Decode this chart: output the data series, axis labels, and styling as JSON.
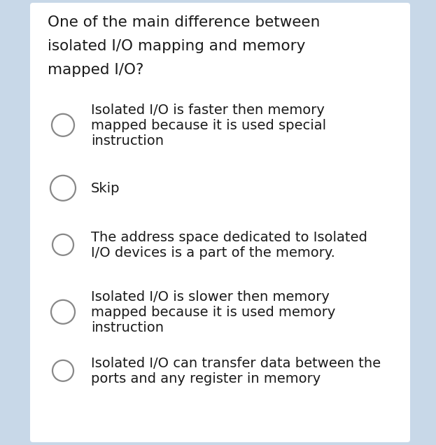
{
  "bg_outer": "#c8d8e8",
  "bg_card": "#ffffff",
  "question": "One of the main difference between isolated I/O mapping and memory mapped I/O?",
  "options": [
    "Isolated I/O is faster then memory\nmapped because it is used special\ninstruction",
    "Skip",
    "The address space dedicated to Isolated\nI/O devices is a part of the memory.",
    "Isolated I/O is slower then memory\nmapped because it is used memory\ninstruction",
    "Isolated I/O can transfer data between the\nports and any register in memory"
  ],
  "question_lines": [
    "One of the main difference between",
    "isolated I/O mapping and memory",
    "mapped I/O?"
  ],
  "question_fontsize": 15.5,
  "option_fontsize": 14.0,
  "text_color": "#1a1a1a",
  "circle_edge_color": "#888888",
  "circle_face_color": "#ffffff",
  "circle_lw": 1.6
}
